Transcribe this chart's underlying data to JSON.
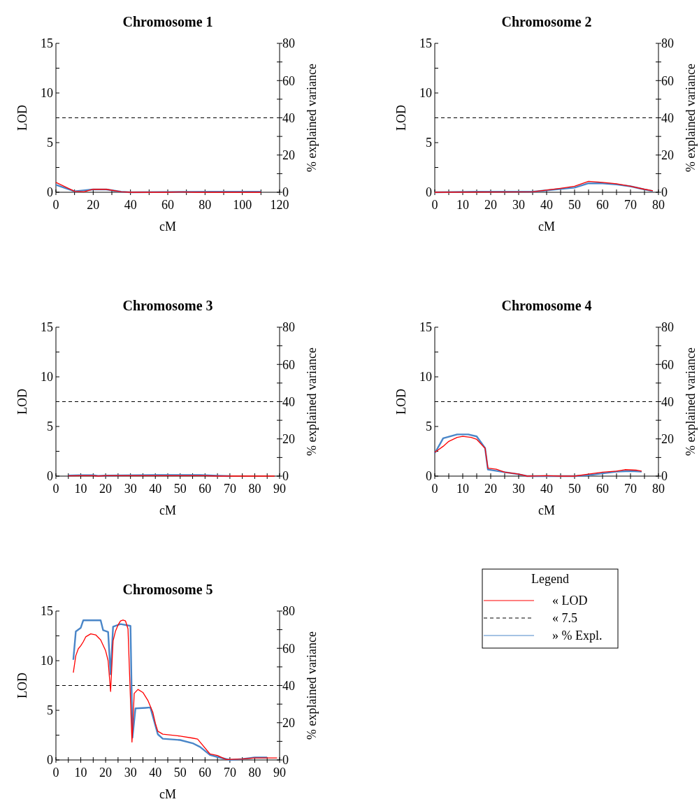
{
  "chart_data": [
    {
      "type": "line",
      "title": "Chromosome 1",
      "xlabel": "cM",
      "ylabel": "LOD",
      "y2label": "% explained variance",
      "xlim": [
        0,
        120
      ],
      "xticks": [
        0,
        {
          "value": 10,
          "label": null
        },
        20,
        {
          "value": 30,
          "label": null
        },
        40,
        {
          "value": 50,
          "label": null
        },
        60,
        {
          "value": 70,
          "label": null
        },
        80,
        {
          "value": 90,
          "label": null
        },
        100,
        {
          "value": 110,
          "label": null
        },
        120
      ],
      "ylim": [
        0,
        15
      ],
      "yticks": [
        0,
        {
          "value": 2.5,
          "label": null
        },
        5,
        {
          "value": 7.5,
          "label": null
        },
        10,
        {
          "value": 12.5,
          "label": null
        },
        15
      ],
      "y2lim": [
        0,
        80
      ],
      "y2ticks": [
        0,
        {
          "value": 10,
          "label": null
        },
        20,
        {
          "value": 30,
          "label": null
        },
        40,
        {
          "value": 50,
          "label": null
        },
        60,
        {
          "value": 70,
          "label": null
        },
        80
      ],
      "ref_lines": [
        {
          "axis": "y",
          "value": 7.5,
          "color": "#000000",
          "line_style": "dashed"
        }
      ],
      "legend": false,
      "series": [
        {
          "color": "#ff0000",
          "x": [
            0,
            10,
            15,
            20,
            27,
            35,
            40,
            60,
            68,
            75,
            110
          ],
          "values": [
            1.0,
            0.1,
            0.05,
            0.3,
            0.3,
            0.05,
            0,
            0,
            0.03,
            0,
            0
          ]
        },
        {
          "color": "#4a86c8",
          "axis": "y2",
          "x": [
            0,
            10,
            20,
            27,
            35,
            40,
            85,
            110
          ],
          "values": [
            4,
            0.5,
            1.5,
            1.5,
            0.3,
            0,
            0.3,
            0.3
          ]
        }
      ]
    },
    {
      "type": "line",
      "title": "Chromosome 2",
      "xlabel": "cM",
      "ylabel": "LOD",
      "y2label": "% explained variance",
      "xlim": [
        0,
        80
      ],
      "xticks": [
        0,
        {
          "value": 5,
          "label": null
        },
        10,
        {
          "value": 15,
          "label": null
        },
        20,
        {
          "value": 25,
          "label": null
        },
        30,
        {
          "value": 35,
          "label": null
        },
        40,
        {
          "value": 45,
          "label": null
        },
        50,
        {
          "value": 55,
          "label": null
        },
        60,
        {
          "value": 65,
          "label": null
        },
        70,
        {
          "value": 75,
          "label": null
        },
        80
      ],
      "ylim": [
        0,
        15
      ],
      "yticks": [
        0,
        {
          "value": 2.5,
          "label": null
        },
        5,
        {
          "value": 7.5,
          "label": null
        },
        10,
        {
          "value": 12.5,
          "label": null
        },
        15
      ],
      "y2lim": [
        0,
        80
      ],
      "y2ticks": [
        0,
        {
          "value": 10,
          "label": null
        },
        20,
        {
          "value": 30,
          "label": null
        },
        40,
        {
          "value": 50,
          "label": null
        },
        60,
        {
          "value": 70,
          "label": null
        },
        80
      ],
      "ref_lines": [
        {
          "axis": "y",
          "value": 7.5,
          "color": "#000000",
          "line_style": "dashed"
        }
      ],
      "legend": false,
      "series": [
        {
          "color": "#ff0000",
          "x": [
            0,
            35,
            45,
            50,
            55,
            60,
            65,
            70,
            75,
            78
          ],
          "values": [
            0,
            0.05,
            0.4,
            0.6,
            1.1,
            1.0,
            0.85,
            0.6,
            0.3,
            0.15
          ]
        },
        {
          "color": "#4a86c8",
          "axis": "y2",
          "x": [
            0,
            15,
            35,
            45,
            50,
            55,
            60,
            65,
            70,
            75,
            78
          ],
          "values": [
            0,
            0.3,
            0.3,
            1.8,
            2.5,
            4.8,
            4.8,
            4.2,
            3.2,
            1.5,
            0.6
          ]
        }
      ]
    },
    {
      "type": "line",
      "title": "Chromosome 3",
      "xlabel": "cM",
      "ylabel": "LOD",
      "y2label": "% explained variance",
      "xlim": [
        0,
        90
      ],
      "xticks": [
        0,
        {
          "value": 5,
          "label": null
        },
        10,
        {
          "value": 15,
          "label": null
        },
        20,
        {
          "value": 25,
          "label": null
        },
        30,
        {
          "value": 35,
          "label": null
        },
        40,
        {
          "value": 45,
          "label": null
        },
        50,
        {
          "value": 55,
          "label": null
        },
        60,
        {
          "value": 65,
          "label": null
        },
        70,
        {
          "value": 75,
          "label": null
        },
        80,
        {
          "value": 85,
          "label": null
        },
        90
      ],
      "ylim": [
        0,
        15
      ],
      "yticks": [
        0,
        {
          "value": 2.5,
          "label": null
        },
        5,
        {
          "value": 7.5,
          "label": null
        },
        10,
        {
          "value": 12.5,
          "label": null
        },
        15
      ],
      "y2lim": [
        0,
        80
      ],
      "y2ticks": [
        0,
        {
          "value": 10,
          "label": null
        },
        20,
        {
          "value": 30,
          "label": null
        },
        40,
        {
          "value": 50,
          "label": null
        },
        60,
        {
          "value": 70,
          "label": null
        },
        80
      ],
      "ref_lines": [
        {
          "axis": "y",
          "value": 7.5,
          "color": "#000000",
          "line_style": "dashed"
        }
      ],
      "legend": false,
      "series": [
        {
          "color": "#ff0000",
          "x": [
            5,
            10,
            15,
            17,
            20,
            40,
            60,
            65,
            88
          ],
          "values": [
            0.02,
            0.05,
            0.05,
            0,
            0.05,
            0.05,
            0.05,
            0,
            0
          ]
        },
        {
          "color": "#4a86c8",
          "axis": "y2",
          "x": [
            5,
            10,
            15,
            17,
            20,
            40,
            58,
            65,
            70
          ],
          "values": [
            0.3,
            0.5,
            0.5,
            0.1,
            0.3,
            0.6,
            0.6,
            0.2,
            0
          ]
        }
      ]
    },
    {
      "type": "line",
      "title": "Chromosome 4",
      "xlabel": "cM",
      "ylabel": "LOD",
      "y2label": "% explained variance",
      "xlim": [
        0,
        80
      ],
      "xticks": [
        0,
        {
          "value": 5,
          "label": null
        },
        10,
        {
          "value": 15,
          "label": null
        },
        20,
        {
          "value": 25,
          "label": null
        },
        30,
        {
          "value": 35,
          "label": null
        },
        40,
        {
          "value": 45,
          "label": null
        },
        50,
        {
          "value": 55,
          "label": null
        },
        60,
        {
          "value": 65,
          "label": null
        },
        70,
        {
          "value": 75,
          "label": null
        },
        80
      ],
      "ylim": [
        0,
        15
      ],
      "yticks": [
        0,
        {
          "value": 2.5,
          "label": null
        },
        5,
        {
          "value": 7.5,
          "label": null
        },
        10,
        {
          "value": 12.5,
          "label": null
        },
        15
      ],
      "y2lim": [
        0,
        80
      ],
      "y2ticks": [
        0,
        {
          "value": 10,
          "label": null
        },
        20,
        {
          "value": 30,
          "label": null
        },
        40,
        {
          "value": 50,
          "label": null
        },
        60,
        {
          "value": 70,
          "label": null
        },
        80
      ],
      "ref_lines": [
        {
          "axis": "y",
          "value": 7.5,
          "color": "#000000",
          "line_style": "dashed"
        }
      ],
      "legend": false,
      "series": [
        {
          "color": "#ff0000",
          "x": [
            0,
            3,
            5,
            8,
            10,
            13,
            15,
            18,
            19,
            22,
            25,
            30,
            33,
            40,
            45,
            50,
            55,
            60,
            65,
            68,
            72,
            74
          ],
          "values": [
            2.4,
            3.0,
            3.5,
            3.9,
            4.0,
            3.9,
            3.7,
            2.8,
            0.8,
            0.7,
            0.4,
            0.2,
            0,
            0.05,
            0,
            0,
            0.2,
            0.4,
            0.5,
            0.65,
            0.6,
            0.5
          ]
        },
        {
          "color": "#4a86c8",
          "axis": "y2",
          "x": [
            0,
            2,
            3,
            8,
            12,
            15,
            18,
            19,
            25,
            30,
            33,
            50,
            55,
            65,
            70,
            74
          ],
          "values": [
            12.3,
            17.6,
            20.3,
            22.4,
            22.4,
            21.3,
            15,
            3.5,
            2.1,
            1,
            0,
            0,
            0.5,
            2.4,
            2.7,
            2.4
          ]
        }
      ]
    },
    {
      "type": "line",
      "title": "Chromosome 5",
      "xlabel": "cM",
      "ylabel": "LOD",
      "y2label": "% explained variance",
      "xlim": [
        0,
        90
      ],
      "xticks": [
        0,
        {
          "value": 5,
          "label": null
        },
        10,
        {
          "value": 15,
          "label": null
        },
        20,
        {
          "value": 25,
          "label": null
        },
        30,
        {
          "value": 35,
          "label": null
        },
        40,
        {
          "value": 45,
          "label": null
        },
        50,
        {
          "value": 55,
          "label": null
        },
        60,
        {
          "value": 65,
          "label": null
        },
        70,
        {
          "value": 75,
          "label": null
        },
        80,
        {
          "value": 85,
          "label": null
        },
        90
      ],
      "ylim": [
        0,
        15
      ],
      "yticks": [
        0,
        {
          "value": 2.5,
          "label": null
        },
        5,
        {
          "value": 7.5,
          "label": null
        },
        10,
        {
          "value": 12.5,
          "label": null
        },
        15
      ],
      "y2lim": [
        0,
        80
      ],
      "y2ticks": [
        0,
        {
          "value": 10,
          "label": null
        },
        20,
        {
          "value": 30,
          "label": null
        },
        40,
        {
          "value": 50,
          "label": null
        },
        60,
        {
          "value": 70,
          "label": null
        },
        80
      ],
      "ref_lines": [
        {
          "axis": "y",
          "value": 7.5,
          "color": "#000000",
          "line_style": "dashed",
          "label": "« 7.5"
        }
      ],
      "legend": "right",
      "legend_title": "Legend",
      "series": [
        {
          "name": "« LOD",
          "color": "#ff0000",
          "x": [
            7,
            8,
            9,
            10,
            11,
            12,
            14,
            16,
            18,
            20,
            21,
            22,
            23,
            24,
            25,
            26,
            27,
            28,
            29,
            30.6,
            31.5,
            33,
            35,
            37,
            39,
            40,
            41,
            43,
            50,
            55,
            57,
            62,
            65,
            68.5,
            75,
            80,
            89
          ],
          "values": [
            8.8,
            10.5,
            11.2,
            11.5,
            11.9,
            12.4,
            12.7,
            12.6,
            12.1,
            11.0,
            10.0,
            6.9,
            12.0,
            13.0,
            13.6,
            14.0,
            14.1,
            14.0,
            13.2,
            1.8,
            6.7,
            7.1,
            6.8,
            6.0,
            4.8,
            3.7,
            2.9,
            2.6,
            2.4,
            2.2,
            2.1,
            0.6,
            0.45,
            0.05,
            0.1,
            0.2,
            0.2
          ]
        },
        {
          "name": "» % Expl.",
          "color": "#4a86c8",
          "axis": "y2",
          "x": [
            7,
            8,
            10,
            11,
            18,
            19,
            21,
            22,
            23,
            26,
            30,
            30.8,
            32,
            36,
            38,
            41,
            43,
            50,
            55,
            58,
            62,
            65,
            70,
            75,
            80,
            85
          ],
          "values": [
            53.8,
            69,
            71,
            75,
            75,
            69.7,
            68.8,
            46,
            71.6,
            73,
            72,
            12,
            27.7,
            28,
            28.2,
            13.8,
            11.4,
            10.7,
            9,
            7,
            2.7,
            1.6,
            0,
            0.5,
            1.3,
            1.3
          ]
        }
      ]
    }
  ]
}
